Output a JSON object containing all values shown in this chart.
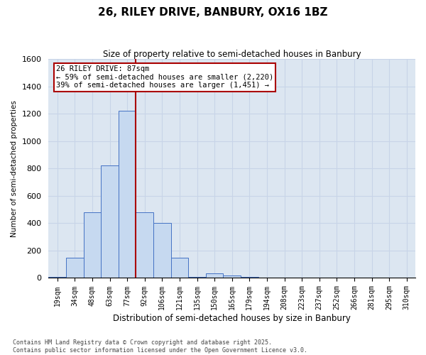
{
  "title": "26, RILEY DRIVE, BANBURY, OX16 1BZ",
  "subtitle": "Size of property relative to semi-detached houses in Banbury",
  "xlabel": "Distribution of semi-detached houses by size in Banbury",
  "ylabel": "Number of semi-detached properties",
  "bar_labels": [
    "19sqm",
    "34sqm",
    "48sqm",
    "63sqm",
    "77sqm",
    "92sqm",
    "106sqm",
    "121sqm",
    "135sqm",
    "150sqm",
    "165sqm",
    "179sqm",
    "194sqm",
    "208sqm",
    "223sqm",
    "237sqm",
    "252sqm",
    "266sqm",
    "281sqm",
    "295sqm",
    "310sqm"
  ],
  "bar_values": [
    10,
    150,
    480,
    820,
    1220,
    480,
    400,
    150,
    10,
    35,
    20,
    10,
    5,
    0,
    0,
    0,
    0,
    0,
    0,
    0,
    0
  ],
  "bar_color": "#c6d9f0",
  "bar_edge_color": "#4472c4",
  "vline_color": "#aa0000",
  "annotation_title": "26 RILEY DRIVE: 87sqm",
  "annotation_line1": "← 59% of semi-detached houses are smaller (2,220)",
  "annotation_line2": "39% of semi-detached houses are larger (1,451) →",
  "ylim_max": 1600,
  "yticks": [
    0,
    200,
    400,
    600,
    800,
    1000,
    1200,
    1400,
    1600
  ],
  "grid_color": "#c8d4e8",
  "bg_color": "#dce6f1",
  "footer_line1": "Contains HM Land Registry data © Crown copyright and database right 2025.",
  "footer_line2": "Contains public sector information licensed under the Open Government Licence v3.0.",
  "vline_index": 4.5
}
